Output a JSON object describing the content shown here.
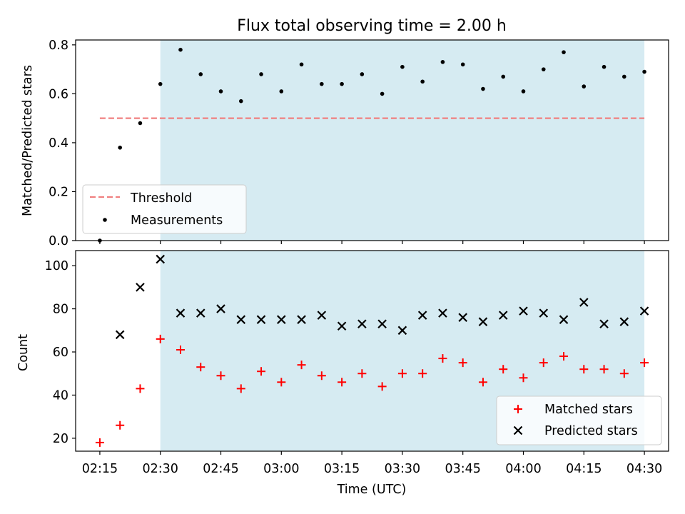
{
  "figure": {
    "title": "Flux total observing time = 2.00 h",
    "xlabel": "Time (UTC)"
  },
  "colors": {
    "shade": "#add8e6",
    "threshold": "#f08080",
    "measurement": "#000000",
    "matched": "#ff0000",
    "predicted": "#000000"
  },
  "chart_data": [
    {
      "type": "scatter",
      "panel": "top",
      "ylabel": "Matched/Predicted stars",
      "ylim": [
        0,
        0.82
      ],
      "yticks": [
        "0.0",
        "0.2",
        "0.4",
        "0.6",
        "0.8"
      ],
      "shaded_region": [
        "02:30",
        "04:30"
      ],
      "legend_position": "lower-left",
      "threshold": {
        "name": "Threshold",
        "value": 0.5,
        "x_range": [
          "02:15",
          "04:30"
        ]
      },
      "series": [
        {
          "name": "Measurements",
          "x": [
            "02:15",
            "02:20",
            "02:25",
            "02:30",
            "02:35",
            "02:40",
            "02:45",
            "02:50",
            "02:55",
            "03:00",
            "03:05",
            "03:10",
            "03:15",
            "03:20",
            "03:25",
            "03:30",
            "03:35",
            "03:40",
            "03:45",
            "03:50",
            "03:55",
            "04:00",
            "04:05",
            "04:10",
            "04:15",
            "04:20",
            "04:25",
            "04:30"
          ],
          "values": [
            0.0,
            0.38,
            0.48,
            0.64,
            0.78,
            0.68,
            0.61,
            0.57,
            0.68,
            0.61,
            0.72,
            0.64,
            0.64,
            0.68,
            0.6,
            0.71,
            0.65,
            0.73,
            0.72,
            0.62,
            0.67,
            0.61,
            0.7,
            0.77,
            0.63,
            0.71,
            0.67,
            0.69
          ]
        }
      ]
    },
    {
      "type": "scatter",
      "panel": "bottom",
      "ylabel": "Count",
      "ylim": [
        14,
        107
      ],
      "yticks": [
        "20",
        "40",
        "60",
        "80",
        "100"
      ],
      "xlim": [
        "02:09",
        "04:36"
      ],
      "xticks": [
        "02:15",
        "02:30",
        "02:45",
        "03:00",
        "03:15",
        "03:30",
        "03:45",
        "04:00",
        "04:15",
        "04:30"
      ],
      "shaded_region": [
        "02:30",
        "04:30"
      ],
      "legend_position": "lower-right",
      "series": [
        {
          "name": "Matched stars",
          "marker": "plus",
          "x": [
            "02:15",
            "02:20",
            "02:25",
            "02:30",
            "02:35",
            "02:40",
            "02:45",
            "02:50",
            "02:55",
            "03:00",
            "03:05",
            "03:10",
            "03:15",
            "03:20",
            "03:25",
            "03:30",
            "03:35",
            "03:40",
            "03:45",
            "03:50",
            "03:55",
            "04:00",
            "04:05",
            "04:10",
            "04:15",
            "04:20",
            "04:25",
            "04:30"
          ],
          "values": [
            18,
            26,
            43,
            66,
            61,
            53,
            49,
            43,
            51,
            46,
            54,
            49,
            46,
            50,
            44,
            50,
            50,
            57,
            55,
            46,
            52,
            48,
            55,
            58,
            52,
            52,
            50,
            55
          ]
        },
        {
          "name": "Predicted stars",
          "marker": "x",
          "x": [
            "02:20",
            "02:25",
            "02:30",
            "02:35",
            "02:40",
            "02:45",
            "02:50",
            "02:55",
            "03:00",
            "03:05",
            "03:10",
            "03:15",
            "03:20",
            "03:25",
            "03:30",
            "03:35",
            "03:40",
            "03:45",
            "03:50",
            "03:55",
            "04:00",
            "04:05",
            "04:10",
            "04:15",
            "04:20",
            "04:25",
            "04:30"
          ],
          "values": [
            68,
            90,
            103,
            78,
            78,
            80,
            75,
            75,
            75,
            75,
            77,
            72,
            73,
            73,
            70,
            77,
            78,
            76,
            74,
            77,
            79,
            78,
            75,
            83,
            73,
            74,
            79
          ]
        }
      ]
    }
  ]
}
